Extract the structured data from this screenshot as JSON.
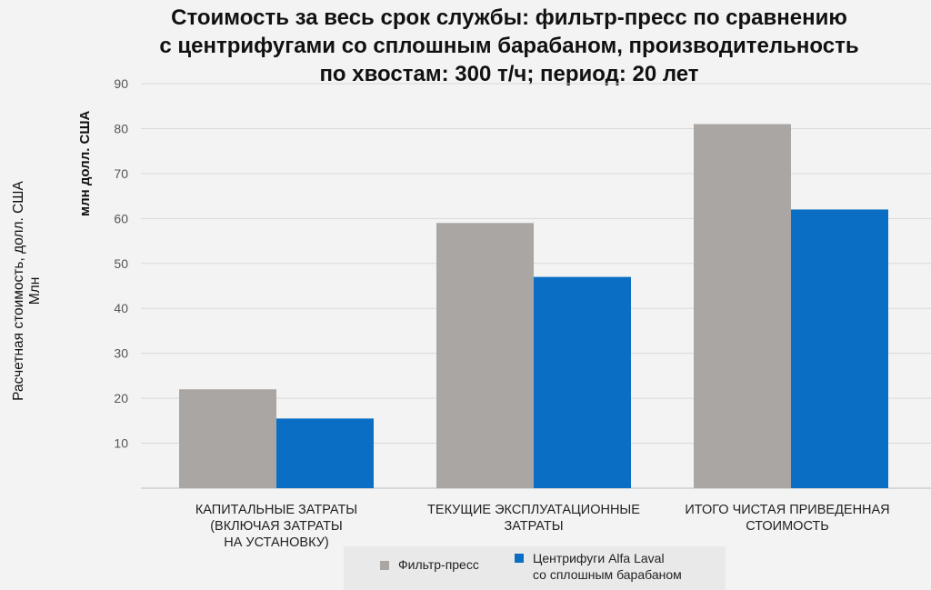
{
  "title_lines": [
    "Стоимость за весь срок службы: фильтр-пресс по сравнению",
    "с центрифугами со сплошным барабаном, производительность",
    "по хвостам: 300 т/ч; период: 20 лет"
  ],
  "ylabel_outer_lines": [
    "Расчетная стоимость, долл. США",
    "Млн"
  ],
  "ylabel_inner": "млн долл. США",
  "chart_data": {
    "type": "bar",
    "categories": [
      [
        "КАПИТАЛЬНЫЕ ЗАТРАТЫ",
        "(ВКЛЮЧАЯ ЗАТРАТЫ",
        "НА УСТАНОВКУ)"
      ],
      [
        "ТЕКУЩИЕ ЭКСПЛУАТАЦИОННЫЕ",
        "ЗАТРАТЫ"
      ],
      [
        "ИТОГО ЧИСТАЯ ПРИВЕДЕННАЯ",
        "СТОИМОСТЬ"
      ]
    ],
    "series": [
      {
        "name": "Фильтр-пресс",
        "color": "#aaa6a3",
        "values": [
          22,
          59,
          81
        ]
      },
      {
        "name_lines": [
          "Центрифуги Alfa Laval",
          "со сплошным барабаном"
        ],
        "color": "#0a6fc4",
        "values": [
          15.5,
          47,
          62
        ]
      }
    ],
    "yticks": [
      10,
      20,
      30,
      40,
      50,
      60,
      70,
      80,
      90
    ],
    "ylim": [
      0,
      90
    ],
    "grid": true,
    "legend_position": "bottom"
  }
}
